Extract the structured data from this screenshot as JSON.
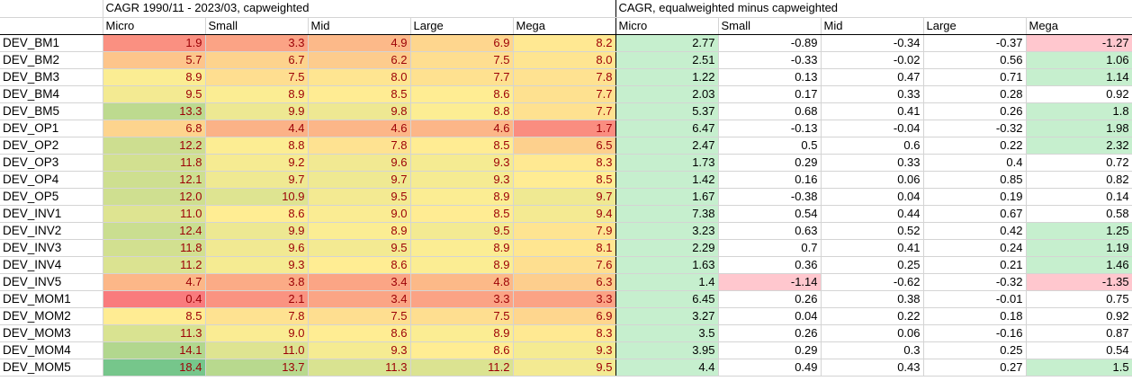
{
  "sheet": {
    "left_title": "CAGR 1990/11 - 2023/03, capweighted",
    "right_title": "CAGR, equalweighted minus capweighted",
    "left_headers": [
      "Micro",
      "Small",
      "Mid",
      "Large",
      "Mega"
    ],
    "right_headers": [
      "Micro",
      "Small",
      "Mid",
      "Large",
      "Mega"
    ],
    "colors": {
      "positive_highlight": "#c6efce",
      "negative_highlight": "#ffc7ce",
      "scale_low": "#f8696b",
      "scale_mid": "#ffeb84",
      "scale_high": "#63be7b",
      "left_text": "#9c0006"
    },
    "rows": [
      {
        "label": "DEV_BM1",
        "left": [
          "1.9",
          "3.3",
          "4.9",
          "6.9",
          "8.2"
        ],
        "right": [
          "2.77",
          "-0.89",
          "-0.34",
          "-0.37",
          "-1.27"
        ],
        "hl": [
          "pos",
          "",
          "",
          "",
          "neg"
        ]
      },
      {
        "label": "DEV_BM2",
        "left": [
          "5.7",
          "6.7",
          "6.2",
          "7.5",
          "8.0"
        ],
        "right": [
          "2.51",
          "-0.33",
          "-0.02",
          "0.56",
          "1.06"
        ],
        "hl": [
          "pos",
          "",
          "",
          "",
          "pos"
        ]
      },
      {
        "label": "DEV_BM3",
        "left": [
          "8.9",
          "7.5",
          "8.0",
          "7.7",
          "7.8"
        ],
        "right": [
          "1.22",
          "0.13",
          "0.47",
          "0.71",
          "1.14"
        ],
        "hl": [
          "pos",
          "",
          "",
          "",
          "pos"
        ]
      },
      {
        "label": "DEV_BM4",
        "left": [
          "9.5",
          "8.9",
          "8.5",
          "8.6",
          "7.7"
        ],
        "right": [
          "2.03",
          "0.17",
          "0.33",
          "0.28",
          "0.92"
        ],
        "hl": [
          "pos",
          "",
          "",
          "",
          ""
        ]
      },
      {
        "label": "DEV_BM5",
        "left": [
          "13.3",
          "9.9",
          "9.8",
          "8.8",
          "7.7"
        ],
        "right": [
          "5.37",
          "0.68",
          "0.41",
          "0.26",
          "1.8"
        ],
        "hl": [
          "pos",
          "",
          "",
          "",
          "pos"
        ]
      },
      {
        "label": "DEV_OP1",
        "left": [
          "6.8",
          "4.4",
          "4.6",
          "4.6",
          "1.7"
        ],
        "right": [
          "6.47",
          "-0.13",
          "-0.04",
          "-0.32",
          "1.98"
        ],
        "hl": [
          "pos",
          "",
          "",
          "",
          "pos"
        ],
        "group_start": true
      },
      {
        "label": "DEV_OP2",
        "left": [
          "12.2",
          "8.8",
          "7.8",
          "8.5",
          "6.5"
        ],
        "right": [
          "2.47",
          "0.5",
          "0.6",
          "0.22",
          "2.32"
        ],
        "hl": [
          "pos",
          "",
          "",
          "",
          "pos"
        ]
      },
      {
        "label": "DEV_OP3",
        "left": [
          "11.8",
          "9.2",
          "9.6",
          "9.3",
          "8.3"
        ],
        "right": [
          "1.73",
          "0.29",
          "0.33",
          "0.4",
          "0.72"
        ],
        "hl": [
          "pos",
          "",
          "",
          "",
          ""
        ]
      },
      {
        "label": "DEV_OP4",
        "left": [
          "12.1",
          "9.7",
          "9.7",
          "9.3",
          "8.5"
        ],
        "right": [
          "1.42",
          "0.16",
          "0.06",
          "0.85",
          "0.82"
        ],
        "hl": [
          "pos",
          "",
          "",
          "",
          ""
        ]
      },
      {
        "label": "DEV_OP5",
        "left": [
          "12.0",
          "10.9",
          "9.5",
          "8.9",
          "9.7"
        ],
        "right": [
          "1.67",
          "-0.38",
          "0.04",
          "0.19",
          "0.14"
        ],
        "hl": [
          "pos",
          "",
          "",
          "",
          ""
        ]
      },
      {
        "label": "DEV_INV1",
        "left": [
          "11.0",
          "8.6",
          "9.0",
          "8.5",
          "9.4"
        ],
        "right": [
          "7.38",
          "0.54",
          "0.44",
          "0.67",
          "0.58"
        ],
        "hl": [
          "pos",
          "",
          "",
          "",
          ""
        ],
        "group_start": true
      },
      {
        "label": "DEV_INV2",
        "left": [
          "12.4",
          "9.9",
          "8.9",
          "9.5",
          "7.9"
        ],
        "right": [
          "3.23",
          "0.63",
          "0.52",
          "0.42",
          "1.25"
        ],
        "hl": [
          "pos",
          "",
          "",
          "",
          "pos"
        ]
      },
      {
        "label": "DEV_INV3",
        "left": [
          "11.8",
          "9.6",
          "9.5",
          "8.9",
          "8.1"
        ],
        "right": [
          "2.29",
          "0.7",
          "0.41",
          "0.24",
          "1.19"
        ],
        "hl": [
          "pos",
          "",
          "",
          "",
          "pos"
        ]
      },
      {
        "label": "DEV_INV4",
        "left": [
          "11.2",
          "9.3",
          "8.6",
          "8.9",
          "7.6"
        ],
        "right": [
          "1.63",
          "0.36",
          "0.25",
          "0.21",
          "1.46"
        ],
        "hl": [
          "pos",
          "",
          "",
          "",
          "pos"
        ]
      },
      {
        "label": "DEV_INV5",
        "left": [
          "4.7",
          "3.8",
          "3.4",
          "4.8",
          "6.3"
        ],
        "right": [
          "1.4",
          "-1.14",
          "-0.62",
          "-0.32",
          "-1.35"
        ],
        "hl": [
          "pos",
          "neg",
          "",
          "",
          "neg"
        ]
      },
      {
        "label": "DEV_MOM1",
        "left": [
          "0.4",
          "2.1",
          "3.4",
          "3.3",
          "3.3"
        ],
        "right": [
          "6.45",
          "0.26",
          "0.38",
          "-0.01",
          "0.75"
        ],
        "hl": [
          "pos",
          "",
          "",
          "",
          ""
        ],
        "group_start": true
      },
      {
        "label": "DEV_MOM2",
        "left": [
          "8.5",
          "7.8",
          "7.5",
          "7.5",
          "6.9"
        ],
        "right": [
          "3.27",
          "0.04",
          "0.22",
          "0.18",
          "0.92"
        ],
        "hl": [
          "pos",
          "",
          "",
          "",
          ""
        ]
      },
      {
        "label": "DEV_MOM3",
        "left": [
          "11.3",
          "9.0",
          "8.6",
          "8.9",
          "8.3"
        ],
        "right": [
          "3.5",
          "0.26",
          "0.06",
          "-0.16",
          "0.87"
        ],
        "hl": [
          "pos",
          "",
          "",
          "",
          ""
        ]
      },
      {
        "label": "DEV_MOM4",
        "left": [
          "14.1",
          "11.0",
          "9.3",
          "8.6",
          "9.3"
        ],
        "right": [
          "3.95",
          "0.29",
          "0.3",
          "0.25",
          "0.54"
        ],
        "hl": [
          "pos",
          "",
          "",
          "",
          ""
        ]
      },
      {
        "label": "DEV_MOM5",
        "left": [
          "18.4",
          "13.7",
          "11.3",
          "11.2",
          "9.5"
        ],
        "right": [
          "4.4",
          "0.49",
          "0.43",
          "0.27",
          "1.5"
        ],
        "hl": [
          "pos",
          "",
          "",
          "",
          "pos"
        ]
      }
    ]
  }
}
